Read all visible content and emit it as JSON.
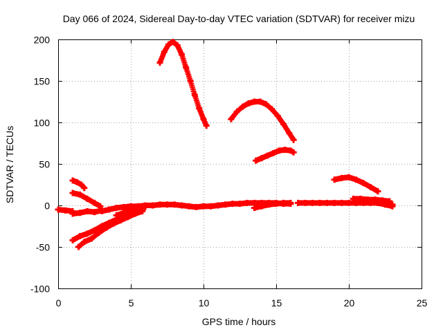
{
  "chart_data": {
    "type": "scatter",
    "title": "Day 066 of 2024, Sidereal Day-to-day VTEC variation (SDTVAR) for receiver mizu",
    "xlabel": "GPS time / hours",
    "ylabel": "SDTVAR / TECUs",
    "xlim": [
      0,
      25
    ],
    "ylim": [
      -100,
      200
    ],
    "xticks": [
      "0",
      "5",
      "10",
      "15",
      "20",
      "25"
    ],
    "yticks": [
      "-100",
      "-50",
      "0",
      "50",
      "100",
      "150",
      "200"
    ],
    "grid": true,
    "marker": "plus",
    "color": "#ff0000",
    "series": [
      {
        "x": [
          0.0,
          0.5,
          1.0
        ],
        "y": [
          -5,
          -6,
          -7
        ]
      },
      {
        "x": [
          1.0,
          1.3,
          1.6,
          1.8
        ],
        "y": [
          30,
          28,
          25,
          21
        ]
      },
      {
        "x": [
          1.0,
          1.5,
          2.0,
          2.5,
          2.9
        ],
        "y": [
          15,
          13,
          8,
          3,
          -1
        ]
      },
      {
        "x": [
          1.0,
          1.5,
          2.0,
          2.5,
          3.0
        ],
        "y": [
          -10,
          -9,
          -7,
          -8,
          -6
        ]
      },
      {
        "x": [
          1.0,
          1.5,
          2.0,
          2.5,
          3.0,
          3.5,
          4.0,
          4.5,
          5.0,
          5.5
        ],
        "y": [
          -42,
          -37,
          -34,
          -30,
          -25,
          -21,
          -17,
          -14,
          -10,
          -7
        ]
      },
      {
        "x": [
          1.4,
          1.8,
          2.3,
          2.8,
          3.3,
          3.8,
          4.3,
          4.8,
          5.3,
          5.8
        ],
        "y": [
          -50,
          -44,
          -40,
          -33,
          -27,
          -22,
          -18,
          -14,
          -10,
          -7
        ]
      },
      {
        "x": [
          3.0,
          3.5,
          4.0,
          4.5,
          5.0,
          5.5,
          6.0,
          6.5,
          7.0,
          7.5,
          8.0,
          8.5,
          9.0,
          9.5,
          10.0,
          10.5,
          11.0,
          11.5,
          12.0,
          12.5,
          13.0,
          13.5,
          14.0,
          14.5,
          15.0,
          15.5,
          16.0
        ],
        "y": [
          -7,
          -5,
          -3,
          -2,
          -1,
          -1,
          0,
          0,
          1,
          1,
          1,
          0,
          -1,
          -2,
          -1,
          -1,
          0,
          1,
          2,
          2,
          3,
          3,
          3,
          3,
          3,
          2,
          2
        ]
      },
      {
        "x": [
          4.0,
          4.5,
          5.0,
          5.5,
          6.0
        ],
        "y": [
          -12,
          -9,
          -6,
          -4,
          -2
        ]
      },
      {
        "x": [
          7.0,
          7.3,
          7.6,
          7.9,
          8.2,
          8.5,
          8.8,
          9.1,
          9.4,
          9.7,
          10.0,
          10.2
        ],
        "y": [
          172,
          185,
          194,
          197,
          193,
          182,
          166,
          150,
          133,
          117,
          104,
          96
        ]
      },
      {
        "x": [
          11.9,
          12.3,
          12.7,
          13.1,
          13.5,
          13.9,
          14.3,
          14.7,
          15.1,
          15.5,
          15.9,
          16.2
        ],
        "y": [
          104,
          113,
          119,
          123,
          125,
          125,
          122,
          116,
          108,
          98,
          87,
          79
        ]
      },
      {
        "x": [
          13.6,
          14.0,
          14.4,
          14.8,
          15.2,
          15.6,
          16.0,
          16.2
        ],
        "y": [
          54,
          57,
          60,
          63,
          66,
          67,
          66,
          64
        ]
      },
      {
        "x": [
          13.5,
          14.0,
          14.5,
          15.0,
          15.5,
          16.0
        ],
        "y": [
          -3,
          -1,
          1,
          2,
          3,
          3
        ]
      },
      {
        "x": [
          16.5,
          17.0,
          17.5,
          18.0,
          18.5,
          19.0,
          19.5,
          20.0,
          20.5,
          21.0,
          21.5,
          22.0,
          22.5,
          23.0
        ],
        "y": [
          3,
          3,
          3,
          3,
          3,
          3,
          3,
          3,
          3,
          3,
          3,
          3,
          2,
          1
        ]
      },
      {
        "x": [
          19.0,
          19.5,
          20.0,
          20.5,
          21.0,
          21.5,
          22.0
        ],
        "y": [
          31,
          33,
          34,
          31,
          27,
          22,
          17
        ]
      },
      {
        "x": [
          20.3,
          20.8,
          21.3,
          21.8,
          22.3,
          22.8
        ],
        "y": [
          8,
          8,
          7,
          7,
          6,
          5
        ]
      },
      {
        "x": [
          20.5,
          21.0,
          21.5,
          22.0,
          22.5,
          23.0
        ],
        "y": [
          5,
          5,
          4,
          3,
          1,
          -1
        ]
      }
    ]
  }
}
